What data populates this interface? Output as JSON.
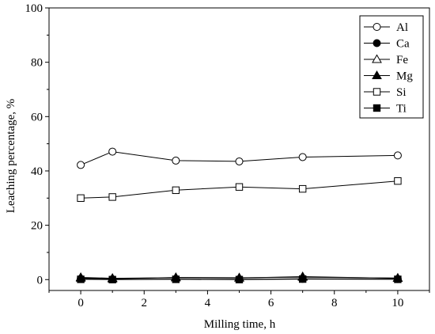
{
  "chart_data": {
    "type": "line",
    "xlabel": "Milling time, h",
    "ylabel": "Leaching percentage, %",
    "xlim": [
      -1,
      11
    ],
    "ylim": [
      -4,
      100
    ],
    "xticks": [
      0,
      2,
      4,
      6,
      8,
      10
    ],
    "yticks": [
      0,
      20,
      40,
      60,
      80,
      100
    ],
    "x": [
      0,
      1,
      3,
      5,
      7,
      10
    ],
    "legend_position": "top-right",
    "grid": false,
    "series": [
      {
        "name": "Al",
        "marker": "circle-open",
        "values": [
          42.2,
          47.1,
          43.8,
          43.5,
          45.1,
          45.7
        ]
      },
      {
        "name": "Ca",
        "marker": "circle-filled",
        "values": [
          0.3,
          0.1,
          0.2,
          0.1,
          0.3,
          0.2
        ]
      },
      {
        "name": "Fe",
        "marker": "triangle-open",
        "values": [
          0.8,
          0.5,
          0.7,
          0.6,
          1.1,
          0.5
        ]
      },
      {
        "name": "Mg",
        "marker": "triangle-filled",
        "values": [
          0.6,
          0.3,
          0.8,
          0.7,
          0.9,
          0.6
        ]
      },
      {
        "name": "Si",
        "marker": "square-open",
        "values": [
          30.0,
          30.4,
          32.9,
          34.1,
          33.4,
          36.3
        ]
      },
      {
        "name": "Ti",
        "marker": "square-filled",
        "values": [
          0.1,
          0.0,
          0.1,
          0.0,
          0.2,
          0.1
        ]
      }
    ]
  }
}
